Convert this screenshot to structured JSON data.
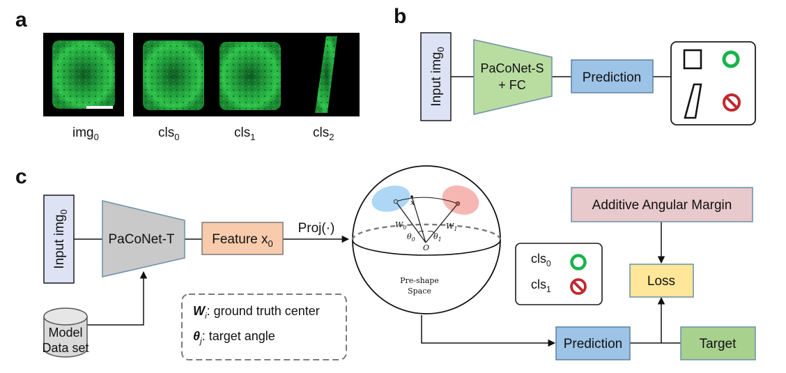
{
  "panels": {
    "a": {
      "label": "a",
      "captions": [
        {
          "base": "img",
          "sub": "0"
        },
        {
          "base": "cls",
          "sub": "0"
        },
        {
          "base": "cls",
          "sub": "1"
        },
        {
          "base": "cls",
          "sub": "2"
        }
      ]
    },
    "b": {
      "label": "b",
      "input": {
        "base": "Input img",
        "sub": "0"
      },
      "net_line1": "PaCoNet-S",
      "net_line2": "+ FC",
      "prediction": "Prediction",
      "colors": {
        "input_fill": "#dde3f4",
        "net_fill": "#b9dca0",
        "prediction_fill": "#9dc3e6"
      }
    },
    "c": {
      "label": "c",
      "input": {
        "base": "Input img",
        "sub": "0"
      },
      "net": "PaCoNet-T",
      "feature": {
        "base": "Feature x",
        "sub": "0"
      },
      "proj": "Proj(·)",
      "dataset_line1": "Model",
      "dataset_line2": "Data set",
      "legend": {
        "w_symbol": "W",
        "w_sub": "i",
        "w_text": ": ground truth center",
        "theta_symbol": "θ",
        "theta_sub": "j",
        "theta_text": ": target angle"
      },
      "sphere": {
        "x": "x",
        "w0": "W",
        "w0_sub": "0",
        "w1": "W",
        "w1_sub": "1",
        "theta0": "θ",
        "theta0_sub": "0",
        "theta1": "θ",
        "theta1_sub": "1",
        "origin": "O",
        "space_line1": "Pre-shape",
        "space_line2": "Space"
      },
      "class_legend": [
        {
          "base": "cls",
          "sub": "0"
        },
        {
          "base": "cls",
          "sub": "1"
        }
      ],
      "margin": "Additive Angular Margin",
      "loss": "Loss",
      "prediction": "Prediction",
      "target": "Target",
      "colors": {
        "feature_fill": "#f8cbad",
        "net_fill": "#c9c9c9",
        "margin_fill": "#e8c9cc",
        "loss_fill": "#ffe699",
        "prediction_fill": "#9dc3e6",
        "target_fill": "#a9d18e",
        "blue_blob": "#9fd0f2",
        "red_blob": "#f4aaa6"
      }
    }
  }
}
